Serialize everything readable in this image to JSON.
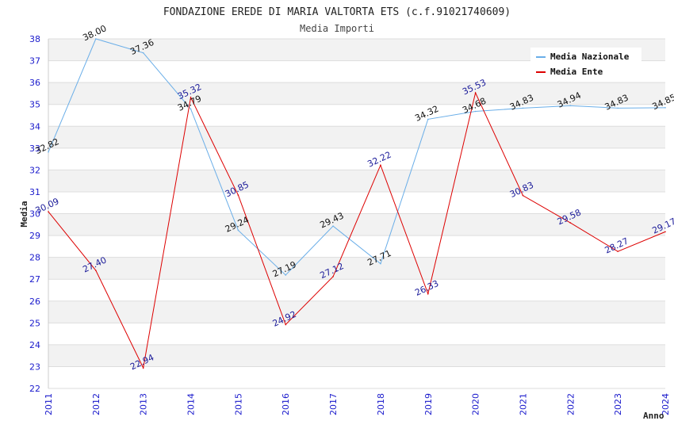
{
  "chart_data": {
    "type": "line",
    "title": "FONDAZIONE EREDE DI MARIA VALTORTA ETS (c.f.91021740609)",
    "subtitle": "Media Importi",
    "xlabel": "Anno",
    "ylabel": "Media",
    "ylim": [
      22,
      38
    ],
    "yticks": [
      "22",
      "23",
      "24",
      "25",
      "26",
      "27",
      "28",
      "29",
      "30",
      "31",
      "32",
      "33",
      "34",
      "35",
      "36",
      "37",
      "38"
    ],
    "categories": [
      "2011",
      "2012",
      "2013",
      "2014",
      "2015",
      "2016",
      "2017",
      "2018",
      "2019",
      "2020",
      "2021",
      "2022",
      "2023",
      "2024"
    ],
    "legend_position": "top-right",
    "series": [
      {
        "name": "Media Nazionale",
        "color": "#6aaee8",
        "label_color": "#111111",
        "values": [
          32.82,
          38.0,
          37.36,
          34.79,
          29.24,
          27.19,
          29.43,
          27.71,
          34.32,
          34.68,
          34.83,
          34.94,
          34.83,
          34.85
        ],
        "labels": [
          "32.82",
          "38.00",
          "37.36",
          "34.79",
          "29.24",
          "27.19",
          "29.43",
          "27.71",
          "34.32",
          "34.68",
          "34.83",
          "34.94",
          "34.83",
          "34.85"
        ]
      },
      {
        "name": "Media Ente",
        "color": "#dd0000",
        "label_color": "#1a1a99",
        "values": [
          30.09,
          27.4,
          22.94,
          35.32,
          30.85,
          24.92,
          27.12,
          32.22,
          26.33,
          35.53,
          30.83,
          29.58,
          28.27,
          29.17
        ],
        "labels": [
          "30.09",
          "27.40",
          "22.94",
          "35.32",
          "30.85",
          "24.92",
          "27.12",
          "32.22",
          "26.33",
          "35.53",
          "30.83",
          "29.58",
          "28.27",
          "29.17"
        ]
      }
    ]
  }
}
